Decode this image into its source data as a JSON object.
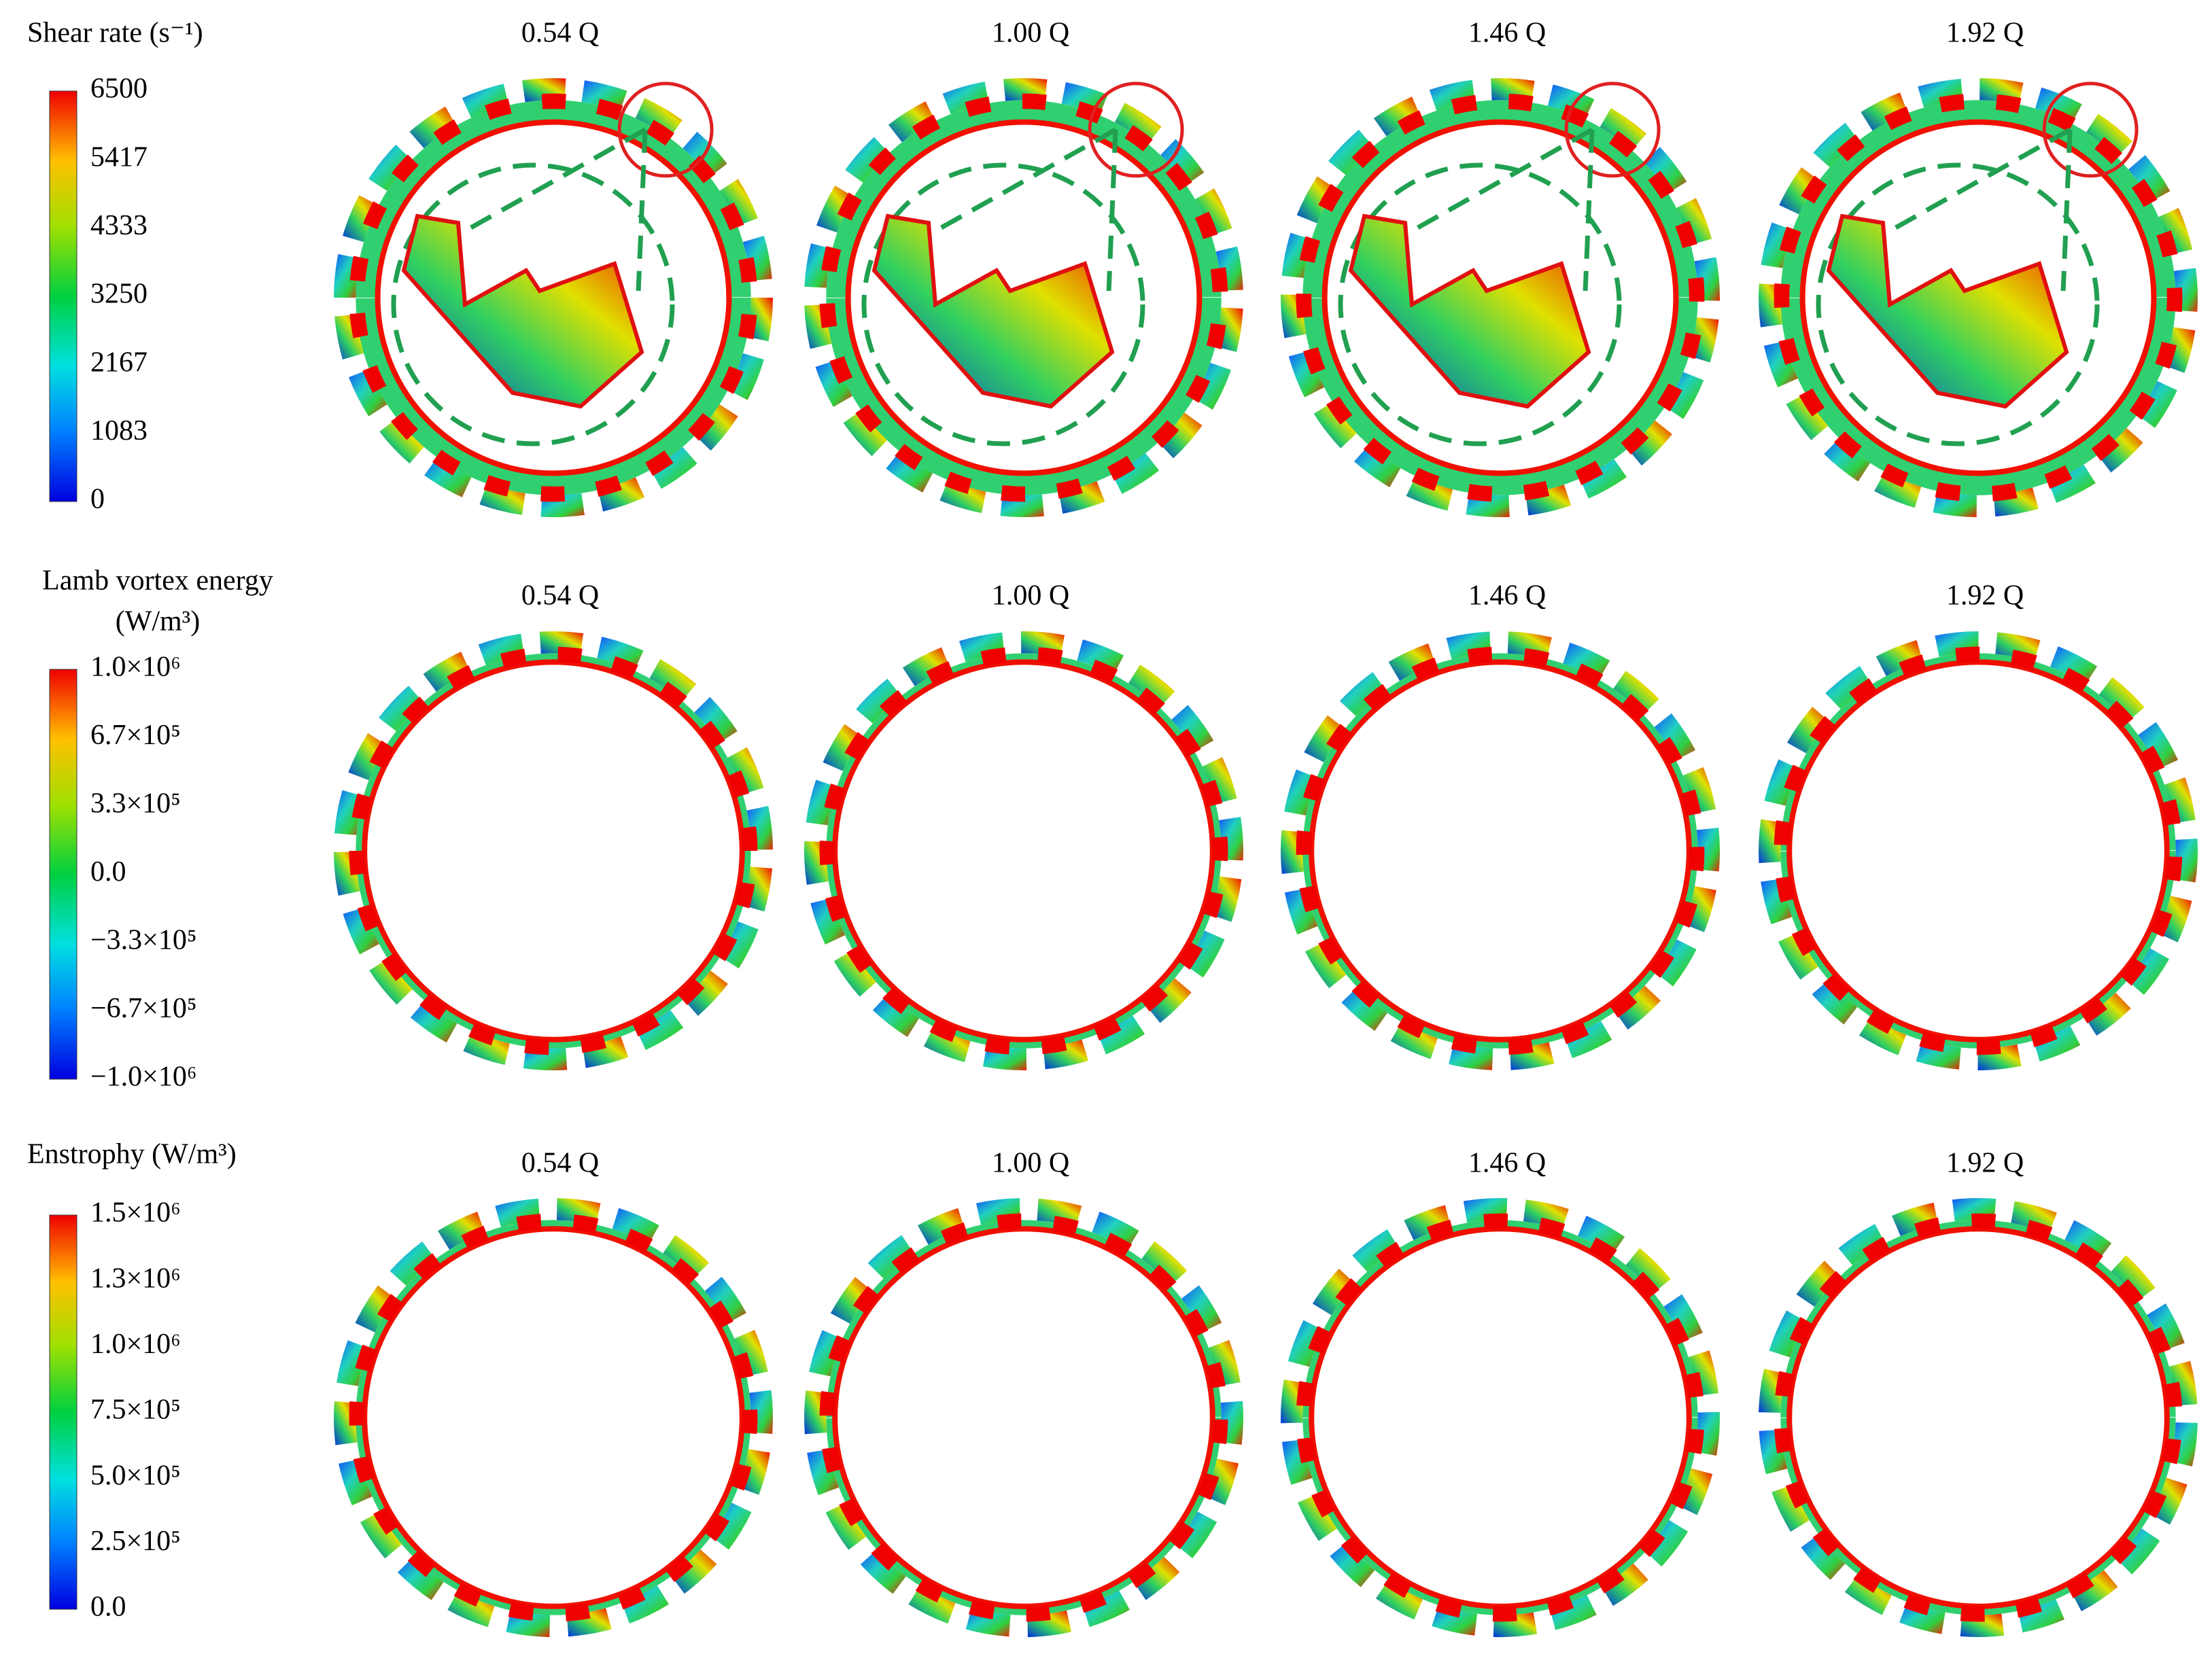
{
  "rows": [
    {
      "title": [
        "Shear rate (s⁻¹)"
      ],
      "ticks": [
        "6500",
        "5417",
        "4333",
        "3250",
        "2167",
        "1083",
        "0"
      ],
      "panels": [
        "0.54 Q",
        "1.00 Q",
        "1.46 Q",
        "1.92 Q"
      ]
    },
    {
      "title": [
        "Lamb vortex energy",
        "(W/m³)"
      ],
      "ticks": [
        "1.0×10⁶",
        "6.7×10⁵",
        "3.3×10⁵",
        "0.0",
        "−3.3×10⁵",
        "−6.7×10⁵",
        "−1.0×10⁶"
      ],
      "panels": [
        "0.54 Q",
        "1.00 Q",
        "1.46 Q",
        "1.92 Q"
      ]
    },
    {
      "title": [
        "Enstrophy (W/m³)"
      ],
      "ticks": [
        "1.5×10⁶",
        "1.3×10⁶",
        "1.0×10⁶",
        "7.5×10⁵",
        "5.0×10⁵",
        "2.5×10⁵",
        "0.0"
      ],
      "panels": [
        "0.54 Q",
        "1.00 Q",
        "1.46 Q",
        "1.92 Q"
      ]
    }
  ]
}
